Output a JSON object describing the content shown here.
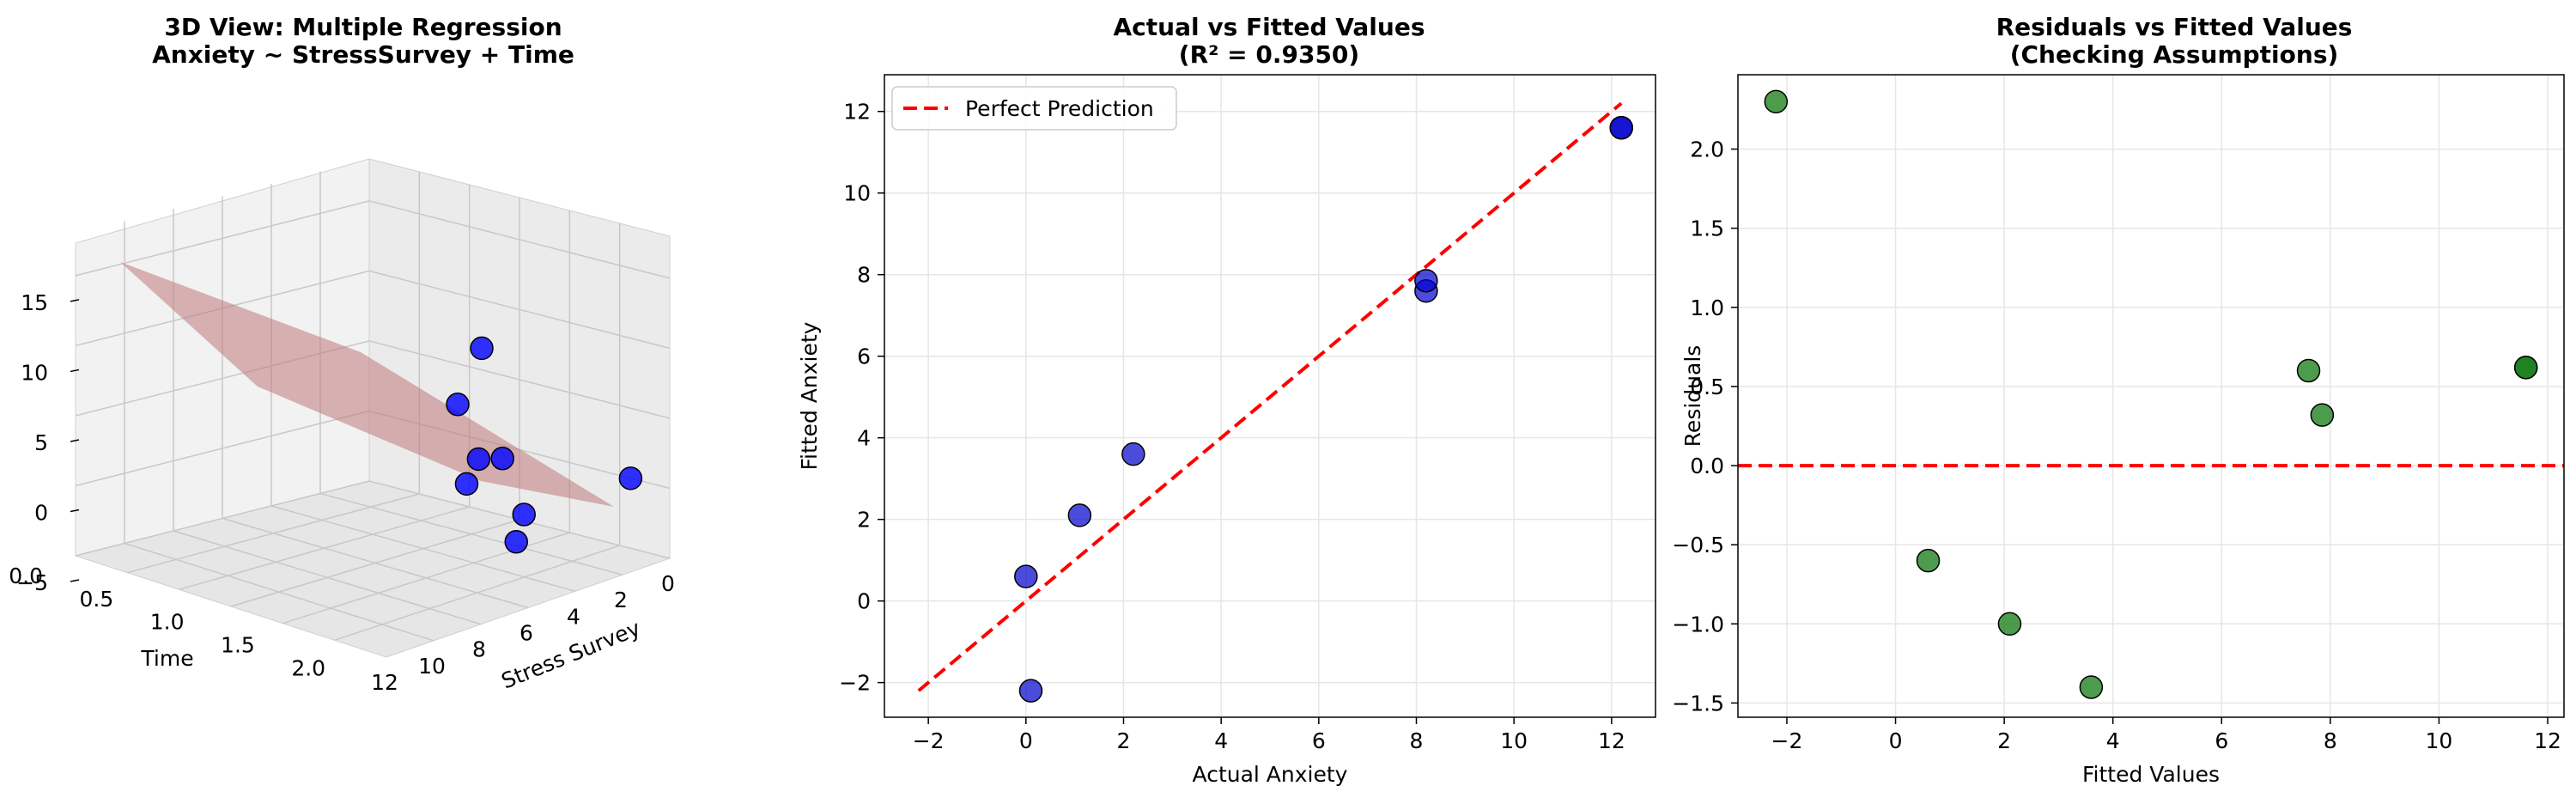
{
  "figure": {
    "panel3d": {
      "title_line1": "3D View: Multiple Regression",
      "title_line2": "Anxiety ~ StressSurvey + Time",
      "xlabel": "Time",
      "ylabel": "Stress Survey",
      "x_ticks": [
        "0.0",
        "0.5",
        "1.0",
        "1.5",
        "2.0"
      ],
      "y_ticks": [
        "0",
        "2",
        "4",
        "6",
        "8",
        "10",
        "12"
      ],
      "z_ticks": [
        "15",
        "10",
        "5",
        "0",
        "−5"
      ],
      "point_color": "#0000ff",
      "plane_color": "#c0787c"
    },
    "panel2": {
      "title_line1": "Actual vs Fitted Values",
      "title_line2": "(R² = 0.9350)",
      "xlabel": "Actual Anxiety",
      "ylabel": "Fitted Anxiety",
      "legend_label": "Perfect Prediction",
      "x_ticks": [
        "−2",
        "0",
        "2",
        "4",
        "6",
        "8",
        "10",
        "12"
      ],
      "y_ticks": [
        "−2",
        "0",
        "2",
        "4",
        "6",
        "8",
        "10",
        "12"
      ],
      "point_color": "#0000cd",
      "line_color": "#ff0000"
    },
    "panel3": {
      "title_line1": "Residuals vs Fitted Values",
      "title_line2": "(Checking Assumptions)",
      "xlabel": "Fitted Values",
      "ylabel": "Residuals",
      "x_ticks": [
        "−2",
        "0",
        "2",
        "4",
        "6",
        "8",
        "10",
        "12"
      ],
      "y_ticks": [
        "−1.5",
        "−1.0",
        "−0.5",
        "0.0",
        "0.5",
        "1.0",
        "1.5",
        "2.0"
      ],
      "point_color": "#117a11",
      "line_color": "#ff0000"
    }
  },
  "chart_data": [
    {
      "type": "scatter",
      "subtype": "3d-scatter-with-regression-plane",
      "title": "3D View: Multiple Regression\nAnxiety ~ StressSurvey + Time",
      "xlabel": "Time",
      "ylabel": "Stress Survey",
      "zlabel": "",
      "xlim": [
        0,
        2.2
      ],
      "ylim": [
        0,
        12
      ],
      "zlim": [
        -5,
        18
      ],
      "points": [
        {
          "time": 1.0,
          "stress": 1.0,
          "anxiety": 7.5
        },
        {
          "time": 1.0,
          "stress": 2.0,
          "anxiety": 4.0
        },
        {
          "time": 1.5,
          "stress": 3.0,
          "anxiety": 2.0
        },
        {
          "time": 1.5,
          "stress": 4.0,
          "anxiety": 2.5
        },
        {
          "time": 1.5,
          "stress": 4.5,
          "anxiety": 1.0
        },
        {
          "time": 2.0,
          "stress": 0.5,
          "anxiety": 0.5
        },
        {
          "time": 2.2,
          "stress": 6.5,
          "anxiety": 0.0
        },
        {
          "time": 2.0,
          "stress": 5.0,
          "anxiety": 0.5
        }
      ],
      "grid": true
    },
    {
      "type": "scatter",
      "title": "Actual vs Fitted Values\n(R² = 0.9350)",
      "xlabel": "Actual Anxiety",
      "ylabel": "Fitted Anxiety",
      "xlim": [
        -2.9,
        12.9
      ],
      "ylim": [
        -2.85,
        12.9
      ],
      "grid": true,
      "legend": "top-left",
      "series": [
        {
          "name": "Perfect Prediction",
          "kind": "dashed-line",
          "x": [
            -2.2,
            12.2
          ],
          "y": [
            -2.2,
            12.2
          ]
        },
        {
          "kind": "points",
          "x": [
            0.1,
            0.0,
            1.1,
            2.2,
            8.2,
            8.2,
            12.2,
            12.2
          ],
          "y": [
            -2.2,
            0.6,
            2.1,
            3.6,
            7.6,
            7.85,
            11.6,
            11.6
          ]
        }
      ]
    },
    {
      "type": "scatter",
      "title": "Residuals vs Fitted Values\n(Checking Assumptions)",
      "xlabel": "Fitted Values",
      "ylabel": "Residuals",
      "xlim": [
        -2.9,
        12.3
      ],
      "ylim": [
        -1.59,
        2.47
      ],
      "grid": true,
      "series": [
        {
          "kind": "points",
          "x": [
            -2.2,
            0.6,
            2.1,
            3.6,
            7.6,
            7.85,
            11.6,
            11.6
          ],
          "y": [
            2.3,
            -0.6,
            -1.0,
            -1.4,
            0.6,
            0.32,
            0.62,
            0.62
          ]
        },
        {
          "kind": "dashed-hline",
          "y": 0.0
        }
      ]
    }
  ]
}
